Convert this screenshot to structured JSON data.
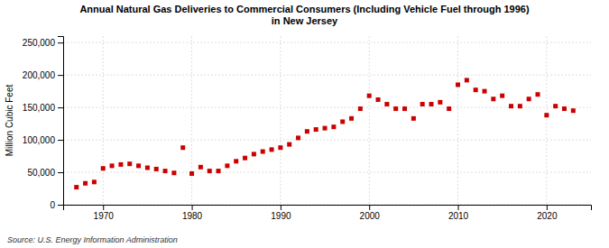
{
  "chart_data": {
    "type": "scatter",
    "title": "Annual Natural Gas Deliveries to Commercial Consumers (Including Vehicle Fuel through 1996)\nin New Jersey",
    "ylabel": "Million Cubic Feet",
    "annotations": [
      "Source: U.S. Energy Information Administration"
    ],
    "color": "#cc0000",
    "marker": "square",
    "x": [
      1967,
      1968,
      1969,
      1970,
      1971,
      1972,
      1973,
      1974,
      1975,
      1976,
      1977,
      1978,
      1979,
      1980,
      1981,
      1982,
      1983,
      1984,
      1985,
      1986,
      1987,
      1988,
      1989,
      1990,
      1991,
      1992,
      1993,
      1994,
      1995,
      1996,
      1997,
      1998,
      1999,
      2000,
      2001,
      2002,
      2003,
      2004,
      2005,
      2006,
      2007,
      2008,
      2009,
      2010,
      2011,
      2012,
      2013,
      2014,
      2015,
      2016,
      2017,
      2018,
      2019,
      2020,
      2021,
      2022,
      2023
    ],
    "values": [
      27000,
      33000,
      35000,
      56000,
      60000,
      62000,
      63000,
      60000,
      57000,
      55000,
      52000,
      49000,
      88000,
      48000,
      58000,
      52000,
      52000,
      60000,
      67000,
      72000,
      78000,
      82000,
      85000,
      88000,
      93000,
      103000,
      113000,
      116000,
      118000,
      120000,
      128000,
      133000,
      148000,
      168000,
      162000,
      155000,
      148000,
      148000,
      133000,
      155000,
      155000,
      158000,
      148000,
      185000,
      192000,
      177000,
      175000,
      163000,
      168000,
      152000,
      152000,
      163000,
      170000,
      138000,
      152000,
      148000,
      145000
    ],
    "xlim": [
      1965.5,
      2025
    ],
    "ylim": [
      0,
      260000
    ],
    "xticks": [
      1970,
      1980,
      1990,
      2000,
      2010,
      2020
    ],
    "yticks": [
      0,
      {
        "value": 50000,
        "label": "50,000"
      },
      {
        "value": 100000,
        "label": "100,000"
      },
      {
        "value": 150000,
        "label": "150,000"
      },
      {
        "value": 200000,
        "label": "200,000"
      },
      {
        "value": 250000,
        "label": "250,000"
      }
    ],
    "grid": true
  }
}
